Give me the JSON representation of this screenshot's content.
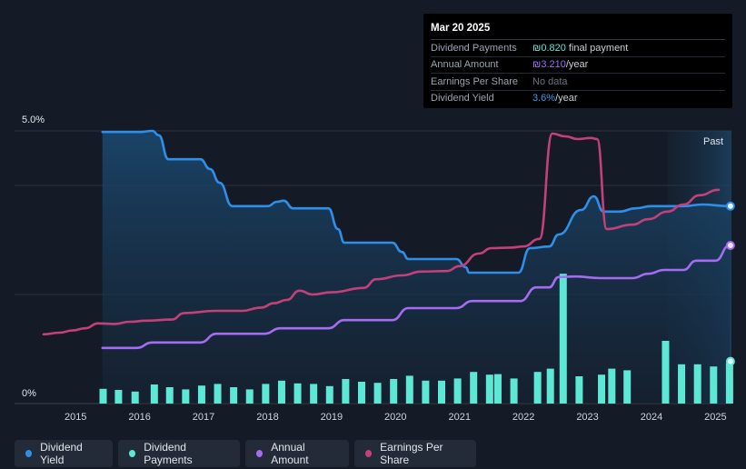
{
  "tooltip": {
    "date": "Mar 20 2025",
    "rows": [
      {
        "label": "Dividend Payments",
        "value": "₪0.820",
        "suffix": " final payment",
        "color": "#5ce8d5"
      },
      {
        "label": "Annual Amount",
        "value": "₪3.210",
        "suffix": "/year",
        "color": "#a56bf0"
      },
      {
        "label": "Earnings Per Share",
        "value": "No data",
        "suffix": "",
        "color": "#6b7280"
      },
      {
        "label": "Dividend Yield",
        "value": "3.6%",
        "suffix": "/year",
        "color": "#3d9bf0"
      }
    ]
  },
  "past_label": "Past",
  "legend": [
    {
      "label": "Dividend Yield",
      "color": "#2f8fe8"
    },
    {
      "label": "Dividend Payments",
      "color": "#5ce8d5"
    },
    {
      "label": "Annual Amount",
      "color": "#a56bf0"
    },
    {
      "label": "Earnings Per Share",
      "color": "#c4407a"
    }
  ],
  "chart_data": {
    "type": "line",
    "title": "",
    "y_tick_labels": [
      "5.0%",
      "0%"
    ],
    "ylim": [
      0,
      5
    ],
    "xlim": [
      2014.5,
      2025.25
    ],
    "x_ticks": [
      2015,
      2016,
      2017,
      2018,
      2019,
      2020,
      2021,
      2022,
      2023,
      2024,
      2025
    ],
    "forecast_start": 2024.25,
    "series": [
      {
        "name": "Dividend Yield",
        "color": "#2f8fe8",
        "unit": "%",
        "points": [
          [
            2015.42,
            4.98
          ],
          [
            2016.0,
            4.98
          ],
          [
            2016.2,
            5.0
          ],
          [
            2016.3,
            4.92
          ],
          [
            2016.45,
            4.48
          ],
          [
            2016.95,
            4.48
          ],
          [
            2017.1,
            4.3
          ],
          [
            2017.25,
            4.05
          ],
          [
            2017.45,
            3.62
          ],
          [
            2018.0,
            3.62
          ],
          [
            2018.15,
            3.7
          ],
          [
            2018.25,
            3.72
          ],
          [
            2018.4,
            3.58
          ],
          [
            2018.95,
            3.58
          ],
          [
            2019.1,
            3.2
          ],
          [
            2019.2,
            2.95
          ],
          [
            2019.95,
            2.95
          ],
          [
            2020.1,
            2.78
          ],
          [
            2020.2,
            2.65
          ],
          [
            2020.95,
            2.65
          ],
          [
            2021.1,
            2.5
          ],
          [
            2021.15,
            2.4
          ],
          [
            2021.92,
            2.4
          ],
          [
            2022.1,
            2.85
          ],
          [
            2022.4,
            2.88
          ],
          [
            2022.55,
            3.1
          ],
          [
            2022.9,
            3.55
          ],
          [
            2023.1,
            3.8
          ],
          [
            2023.25,
            3.52
          ],
          [
            2023.5,
            3.52
          ],
          [
            2023.75,
            3.58
          ],
          [
            2024.0,
            3.62
          ],
          [
            2024.5,
            3.62
          ],
          [
            2024.8,
            3.65
          ],
          [
            2025.22,
            3.62
          ]
        ]
      },
      {
        "name": "Earnings Per Share",
        "color": "#c4407a",
        "unit": "scaled",
        "points": [
          [
            2014.5,
            1.27
          ],
          [
            2014.75,
            1.3
          ],
          [
            2014.95,
            1.34
          ],
          [
            2015.15,
            1.38
          ],
          [
            2015.35,
            1.47
          ],
          [
            2015.6,
            1.46
          ],
          [
            2015.85,
            1.5
          ],
          [
            2016.1,
            1.52
          ],
          [
            2016.5,
            1.54
          ],
          [
            2016.7,
            1.66
          ],
          [
            2017.2,
            1.7
          ],
          [
            2017.6,
            1.7
          ],
          [
            2017.9,
            1.76
          ],
          [
            2018.1,
            1.84
          ],
          [
            2018.3,
            1.9
          ],
          [
            2018.5,
            2.07
          ],
          [
            2018.7,
            2.0
          ],
          [
            2019.0,
            2.04
          ],
          [
            2019.5,
            2.12
          ],
          [
            2019.7,
            2.28
          ],
          [
            2020.1,
            2.35
          ],
          [
            2020.4,
            2.42
          ],
          [
            2020.8,
            2.43
          ],
          [
            2021.0,
            2.52
          ],
          [
            2021.3,
            2.75
          ],
          [
            2021.5,
            2.85
          ],
          [
            2021.8,
            2.86
          ],
          [
            2022.0,
            2.88
          ],
          [
            2022.25,
            3.02
          ],
          [
            2022.45,
            4.95
          ],
          [
            2022.65,
            4.9
          ],
          [
            2022.85,
            4.85
          ],
          [
            2023.05,
            4.87
          ],
          [
            2023.15,
            4.85
          ],
          [
            2023.3,
            3.2
          ],
          [
            2023.7,
            3.28
          ],
          [
            2023.95,
            3.38
          ],
          [
            2024.25,
            3.52
          ],
          [
            2024.5,
            3.65
          ],
          [
            2024.75,
            3.82
          ],
          [
            2025.05,
            3.92
          ]
        ]
      },
      {
        "name": "Annual Amount",
        "color": "#a56bf0",
        "unit": "scaled",
        "points": [
          [
            2015.42,
            1.02
          ],
          [
            2015.95,
            1.02
          ],
          [
            2016.2,
            1.12
          ],
          [
            2016.95,
            1.12
          ],
          [
            2017.2,
            1.28
          ],
          [
            2017.95,
            1.28
          ],
          [
            2018.2,
            1.38
          ],
          [
            2018.95,
            1.38
          ],
          [
            2019.2,
            1.53
          ],
          [
            2019.95,
            1.53
          ],
          [
            2020.2,
            1.75
          ],
          [
            2020.95,
            1.75
          ],
          [
            2021.2,
            1.88
          ],
          [
            2021.95,
            1.88
          ],
          [
            2022.2,
            2.13
          ],
          [
            2022.4,
            2.13
          ],
          [
            2022.55,
            2.32
          ],
          [
            2022.8,
            2.33
          ],
          [
            2023.2,
            2.3
          ],
          [
            2023.7,
            2.3
          ],
          [
            2023.95,
            2.38
          ],
          [
            2024.2,
            2.45
          ],
          [
            2024.5,
            2.45
          ],
          [
            2024.7,
            2.62
          ],
          [
            2025.0,
            2.62
          ],
          [
            2025.22,
            2.9
          ]
        ]
      }
    ],
    "bars": {
      "name": "Dividend Payments",
      "color": "#5ce8d5",
      "unit": "scaled",
      "values": [
        [
          2015.43,
          0.27
        ],
        [
          2015.67,
          0.25
        ],
        [
          2015.93,
          0.22
        ],
        [
          2016.23,
          0.35
        ],
        [
          2016.47,
          0.3
        ],
        [
          2016.72,
          0.26
        ],
        [
          2016.97,
          0.33
        ],
        [
          2017.22,
          0.36
        ],
        [
          2017.47,
          0.3
        ],
        [
          2017.72,
          0.26
        ],
        [
          2017.97,
          0.36
        ],
        [
          2018.22,
          0.42
        ],
        [
          2018.47,
          0.37
        ],
        [
          2018.72,
          0.36
        ],
        [
          2018.97,
          0.32
        ],
        [
          2019.22,
          0.45
        ],
        [
          2019.47,
          0.4
        ],
        [
          2019.72,
          0.38
        ],
        [
          2019.97,
          0.45
        ],
        [
          2020.22,
          0.51
        ],
        [
          2020.47,
          0.42
        ],
        [
          2020.72,
          0.42
        ],
        [
          2020.97,
          0.46
        ],
        [
          2021.22,
          0.58
        ],
        [
          2021.47,
          0.53
        ],
        [
          2021.6,
          0.54
        ],
        [
          2021.85,
          0.46
        ],
        [
          2022.22,
          0.58
        ],
        [
          2022.42,
          0.64
        ],
        [
          2022.62,
          2.38
        ],
        [
          2022.87,
          0.5
        ],
        [
          2023.22,
          0.53
        ],
        [
          2023.38,
          0.64
        ],
        [
          2023.62,
          0.61
        ],
        [
          2024.22,
          1.15
        ],
        [
          2024.47,
          0.72
        ],
        [
          2024.72,
          0.72
        ],
        [
          2024.97,
          0.68
        ],
        [
          2025.22,
          0.74
        ]
      ]
    }
  }
}
